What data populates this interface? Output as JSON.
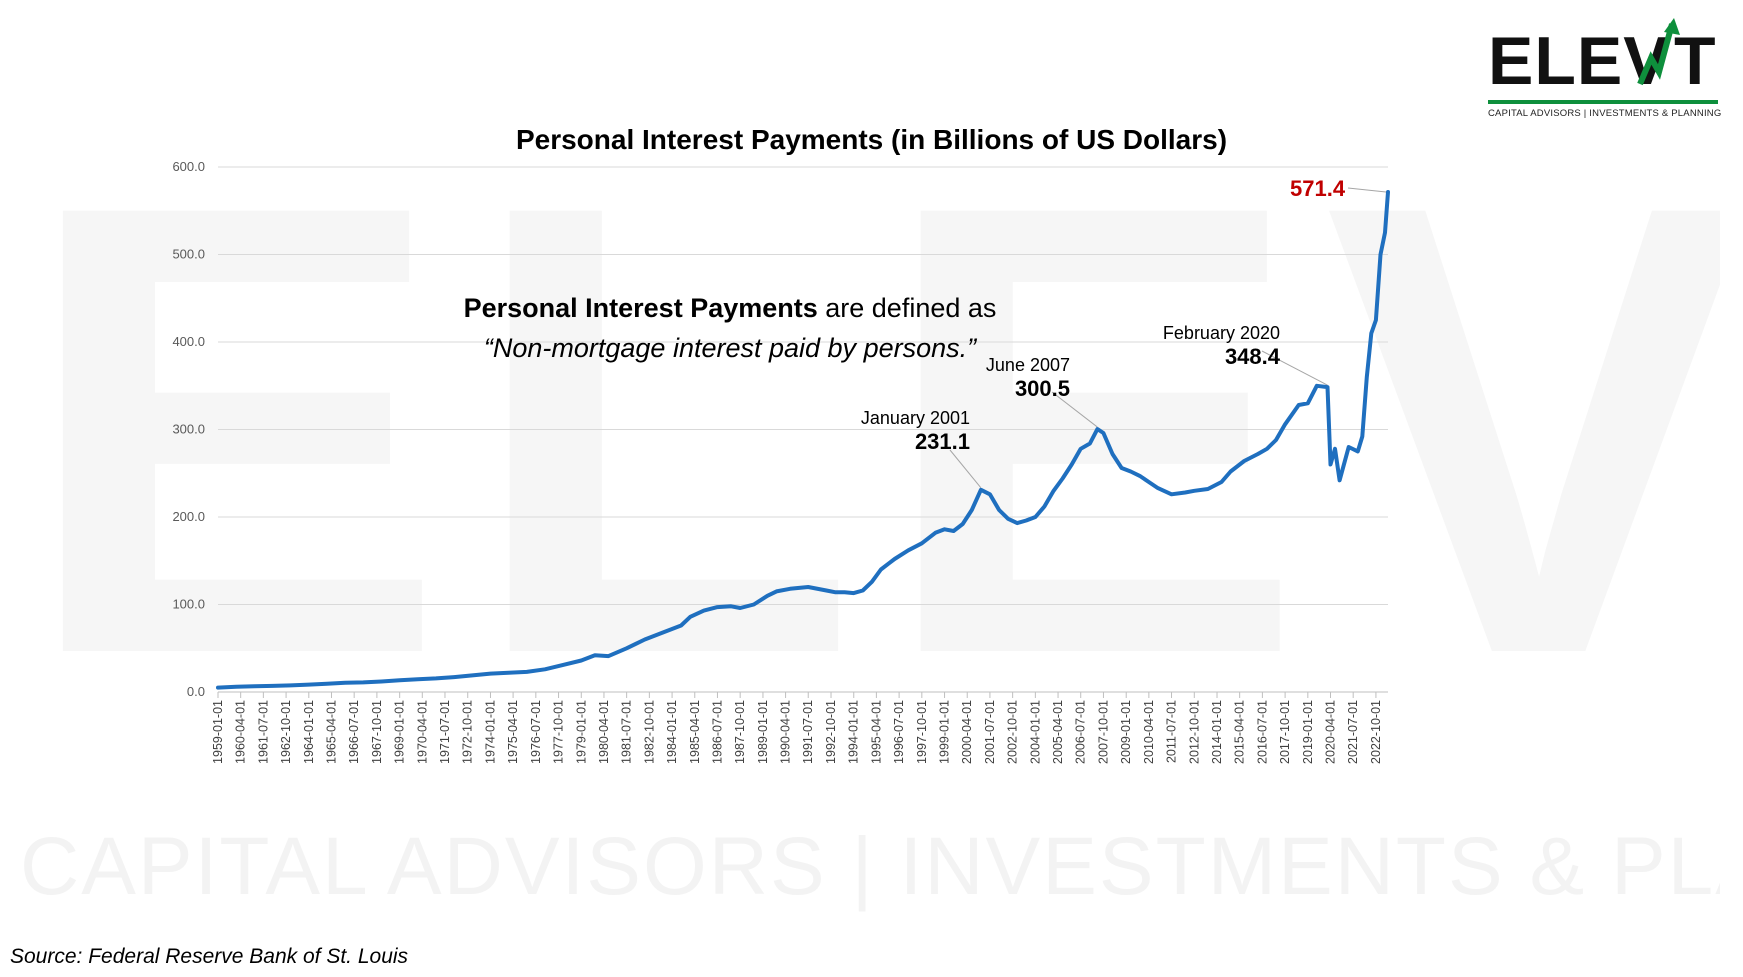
{
  "watermark": {
    "big": "ELEVATE",
    "small": "CAPITAL ADVISORS | INVESTMENTS & PLANNING"
  },
  "logo": {
    "name": "ELEVATE",
    "tagline": "CAPITAL ADVISORS | INVESTMENTS & PLANNING",
    "arrow_color": "#0e8f3c"
  },
  "definition": {
    "bold_part": "Personal Interest Payments",
    "rest": " are defined as",
    "quote": "“Non-mortgage interest paid by persons.”"
  },
  "source": "Source: Federal Reserve Bank of St. Louis",
  "chart_data": {
    "type": "line",
    "title": "Personal Interest Payments (in Billions of US Dollars)",
    "xlabel": "",
    "ylabel": "",
    "ylim": [
      0,
      600
    ],
    "yticks": [
      "0.0",
      "100.0",
      "200.0",
      "300.0",
      "400.0",
      "500.0",
      "600.0"
    ],
    "grid": true,
    "line_color": "#1f6fbf",
    "x_tick_labels": [
      "1959-01-01",
      "1960-04-01",
      "1961-07-01",
      "1962-10-01",
      "1964-01-01",
      "1965-04-01",
      "1966-07-01",
      "1967-10-01",
      "1969-01-01",
      "1970-04-01",
      "1971-07-01",
      "1972-10-01",
      "1974-01-01",
      "1975-04-01",
      "1976-07-01",
      "1977-10-01",
      "1979-01-01",
      "1980-04-01",
      "1981-07-01",
      "1982-10-01",
      "1984-01-01",
      "1985-04-01",
      "1986-07-01",
      "1987-10-01",
      "1989-01-01",
      "1990-04-01",
      "1991-07-01",
      "1992-10-01",
      "1994-01-01",
      "1995-04-01",
      "1996-07-01",
      "1997-10-01",
      "1999-01-01",
      "2000-04-01",
      "2001-07-01",
      "2002-10-01",
      "2004-01-01",
      "2005-04-01",
      "2006-07-01",
      "2007-10-01",
      "2009-01-01",
      "2010-04-01",
      "2011-07-01",
      "2012-10-01",
      "2014-01-01",
      "2015-04-01",
      "2016-07-01",
      "2017-10-01",
      "2019-01-01",
      "2020-04-01",
      "2021-07-01",
      "2022-10-01"
    ],
    "series": [
      {
        "points": [
          [
            "1959-01-01",
            5
          ],
          [
            "1960-01-01",
            6
          ],
          [
            "1961-01-01",
            6.5
          ],
          [
            "1962-01-01",
            7
          ],
          [
            "1963-01-01",
            7.5
          ],
          [
            "1964-01-01",
            8.5
          ],
          [
            "1965-01-01",
            9.5
          ],
          [
            "1966-01-01",
            10.5
          ],
          [
            "1967-01-01",
            11
          ],
          [
            "1968-01-01",
            12
          ],
          [
            "1969-01-01",
            13.5
          ],
          [
            "1970-01-01",
            14.5
          ],
          [
            "1971-01-01",
            15.5
          ],
          [
            "1972-01-01",
            17
          ],
          [
            "1973-01-01",
            19
          ],
          [
            "1974-01-01",
            21
          ],
          [
            "1975-01-01",
            22
          ],
          [
            "1976-01-01",
            23
          ],
          [
            "1977-01-01",
            26
          ],
          [
            "1978-01-01",
            31
          ],
          [
            "1979-01-01",
            36
          ],
          [
            "1979-10-01",
            42
          ],
          [
            "1980-07-01",
            41
          ],
          [
            "1981-07-01",
            50
          ],
          [
            "1982-07-01",
            60
          ],
          [
            "1983-07-01",
            68
          ],
          [
            "1984-07-01",
            76
          ],
          [
            "1985-01-01",
            86
          ],
          [
            "1985-10-01",
            93
          ],
          [
            "1986-07-01",
            97
          ],
          [
            "1987-04-01",
            98
          ],
          [
            "1987-10-01",
            96
          ],
          [
            "1988-07-01",
            100
          ],
          [
            "1989-04-01",
            110
          ],
          [
            "1989-10-01",
            115
          ],
          [
            "1990-07-01",
            118
          ],
          [
            "1991-07-01",
            120
          ],
          [
            "1992-07-01",
            116
          ],
          [
            "1993-01-01",
            114
          ],
          [
            "1993-07-01",
            114
          ],
          [
            "1994-01-01",
            113
          ],
          [
            "1994-07-01",
            116
          ],
          [
            "1995-01-01",
            126
          ],
          [
            "1995-07-01",
            140
          ],
          [
            "1996-04-01",
            152
          ],
          [
            "1997-01-01",
            162
          ],
          [
            "1997-10-01",
            170
          ],
          [
            "1998-07-01",
            182
          ],
          [
            "1999-01-01",
            186
          ],
          [
            "1999-07-01",
            184
          ],
          [
            "2000-01-01",
            192
          ],
          [
            "2000-07-01",
            208
          ],
          [
            "2001-01-01",
            231.1
          ],
          [
            "2001-07-01",
            226
          ],
          [
            "2002-01-01",
            208
          ],
          [
            "2002-07-01",
            198
          ],
          [
            "2003-01-01",
            193
          ],
          [
            "2003-07-01",
            196
          ],
          [
            "2004-01-01",
            200
          ],
          [
            "2004-07-01",
            212
          ],
          [
            "2005-01-01",
            230
          ],
          [
            "2005-07-01",
            244
          ],
          [
            "2006-01-01",
            260
          ],
          [
            "2006-07-01",
            278
          ],
          [
            "2007-01-01",
            284
          ],
          [
            "2007-06-01",
            300.5
          ],
          [
            "2007-10-01",
            296
          ],
          [
            "2008-04-01",
            272
          ],
          [
            "2008-10-01",
            256
          ],
          [
            "2009-04-01",
            252
          ],
          [
            "2009-10-01",
            247
          ],
          [
            "2010-04-01",
            240
          ],
          [
            "2010-10-01",
            233
          ],
          [
            "2011-07-01",
            226
          ],
          [
            "2012-04-01",
            228
          ],
          [
            "2012-10-01",
            230
          ],
          [
            "2013-07-01",
            232
          ],
          [
            "2014-04-01",
            240
          ],
          [
            "2014-10-01",
            252
          ],
          [
            "2015-07-01",
            264
          ],
          [
            "2016-04-01",
            272
          ],
          [
            "2016-10-01",
            278
          ],
          [
            "2017-04-01",
            288
          ],
          [
            "2017-10-01",
            306
          ],
          [
            "2018-07-01",
            328
          ],
          [
            "2019-01-01",
            330
          ],
          [
            "2019-07-01",
            350
          ],
          [
            "2020-02-01",
            348.4
          ],
          [
            "2020-04-01",
            260
          ],
          [
            "2020-07-01",
            278
          ],
          [
            "2020-10-01",
            242
          ],
          [
            "2021-04-01",
            280
          ],
          [
            "2021-10-01",
            275
          ],
          [
            "2022-01-01",
            292
          ],
          [
            "2022-04-01",
            360
          ],
          [
            "2022-07-01",
            410
          ],
          [
            "2022-10-01",
            425
          ],
          [
            "2023-01-01",
            500
          ],
          [
            "2023-04-01",
            525
          ],
          [
            "2023-06-01",
            571.4
          ]
        ]
      }
    ],
    "annotations": [
      {
        "date_label": "January 2001",
        "value_label": "231.1",
        "x": "2001-01-01",
        "y": 231.1
      },
      {
        "date_label": "June 2007",
        "value_label": "300.5",
        "x": "2007-06-01",
        "y": 300.5
      },
      {
        "date_label": "February 2020",
        "value_label": "348.4",
        "x": "2020-02-01",
        "y": 348.4
      }
    ],
    "last_value": {
      "label": "571.4",
      "x": "2023-06-01",
      "y": 571.4,
      "color": "#c00000"
    }
  }
}
